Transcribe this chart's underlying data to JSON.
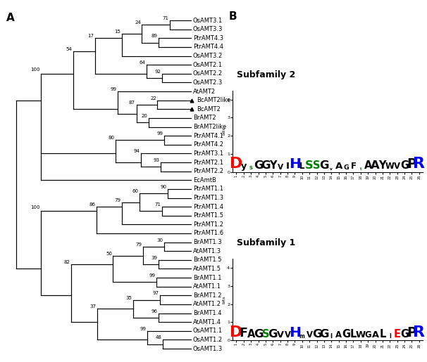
{
  "panel_A_label": "A",
  "panel_B_label": "B",
  "subfamily2_title": "Subfamily 2",
  "subfamily1_title": "Subfamily 1",
  "taxa": [
    "OsAMT3.1",
    "OsAMT3.3",
    "PtrAMT4.3",
    "PtrAMT4.4",
    "OsAMT3.2",
    "OsAMT2.1",
    "OsAMT2.2",
    "OsAMT2.3",
    "AtAMT2",
    "BcAMT2like",
    "BcAMT2",
    "BrAMT2",
    "BrAMT2like",
    "PtrAMT4.1",
    "PtrAMT4.2",
    "PtrAMT3.1",
    "PtrAMT2.1",
    "PtrAMT2.2",
    "EcAmtB",
    "PtrAMT1.1",
    "PtrAMT1.3",
    "PtrAMT1.4",
    "PtrAMT1.5",
    "PtrAMT1.2",
    "PtrAMT1.6",
    "BrAMT1.3",
    "AtAMT1.3",
    "BrAMT1.5",
    "AtAMT1.5",
    "BrAMT1.1",
    "AtAMT1.1",
    "BrAMT1.2",
    "AtAMT1.2",
    "BrAMT1.4",
    "AtAMT1.4",
    "OsAMT1.1",
    "OsAMT1.2",
    "OsAMT1.3"
  ],
  "black_triangle_indices": [
    9,
    10
  ],
  "tree_color": "#000000",
  "font_size_taxa": 6.0,
  "font_size_bootstrap": 5.0,
  "background_color": "#ffffff",
  "logo2_data": [
    [
      "D",
      3.8,
      "red"
    ],
    [
      "y",
      2.2,
      "black"
    ],
    [
      "s",
      1.4,
      "green"
    ],
    [
      "G",
      2.8,
      "black"
    ],
    [
      "G",
      2.8,
      "black"
    ],
    [
      "Y",
      2.5,
      "black"
    ],
    [
      "V",
      1.8,
      "black"
    ],
    [
      "I",
      2.3,
      "black"
    ],
    [
      "H",
      3.5,
      "blue"
    ],
    [
      "L",
      2.0,
      "black"
    ],
    [
      "S",
      2.8,
      "green"
    ],
    [
      "S",
      2.5,
      "green"
    ],
    [
      "G",
      2.8,
      "black"
    ],
    [
      "v",
      1.0,
      "black"
    ],
    [
      "A",
      2.3,
      "black"
    ],
    [
      "G",
      1.6,
      "black"
    ],
    [
      "F",
      2.0,
      "black"
    ],
    [
      "t",
      0.9,
      "green"
    ],
    [
      "A",
      2.5,
      "black"
    ],
    [
      "A",
      2.8,
      "black"
    ],
    [
      "Y",
      2.5,
      "black"
    ],
    [
      "W",
      2.0,
      "black"
    ],
    [
      "V",
      2.0,
      "black"
    ],
    [
      "G",
      2.5,
      "black"
    ],
    [
      "P",
      3.2,
      "black"
    ],
    [
      "R",
      3.8,
      "blue"
    ]
  ],
  "logo1_data": [
    [
      "D",
      3.8,
      "red"
    ],
    [
      "F",
      3.0,
      "black"
    ],
    [
      "A",
      2.5,
      "black"
    ],
    [
      "G",
      2.8,
      "black"
    ],
    [
      "S",
      2.5,
      "green"
    ],
    [
      "G",
      2.8,
      "black"
    ],
    [
      "V",
      2.2,
      "black"
    ],
    [
      "V",
      2.0,
      "black"
    ],
    [
      "H",
      3.5,
      "blue"
    ],
    [
      "m",
      1.3,
      "black"
    ],
    [
      "V",
      2.0,
      "black"
    ],
    [
      "G",
      2.8,
      "black"
    ],
    [
      "G",
      2.8,
      "black"
    ],
    [
      "I",
      1.5,
      "black"
    ],
    [
      "A",
      2.0,
      "black"
    ],
    [
      "G",
      2.5,
      "black"
    ],
    [
      "L",
      2.5,
      "black"
    ],
    [
      "W",
      2.2,
      "black"
    ],
    [
      "G",
      2.0,
      "black"
    ],
    [
      "A",
      2.2,
      "black"
    ],
    [
      "L",
      2.5,
      "black"
    ],
    [
      "I",
      1.3,
      "black"
    ],
    [
      "E",
      2.5,
      "red"
    ],
    [
      "G",
      2.5,
      "black"
    ],
    [
      "P",
      3.2,
      "black"
    ],
    [
      "R",
      3.8,
      "blue"
    ]
  ]
}
